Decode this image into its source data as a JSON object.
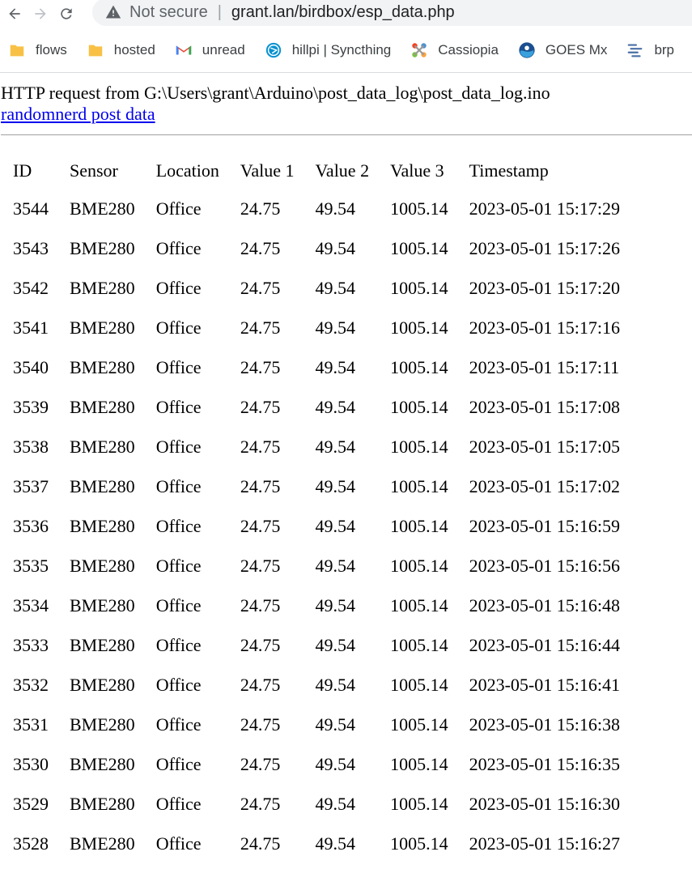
{
  "browser": {
    "security_label": "Not secure",
    "url": "grant.lan/birdbox/esp_data.php",
    "bookmarks": [
      {
        "label": "flows",
        "icon": "folder-icon"
      },
      {
        "label": "hosted",
        "icon": "folder-icon"
      },
      {
        "label": "unread",
        "icon": "gmail-icon"
      },
      {
        "label": "hillpi | Syncthing",
        "icon": "syncthing-icon"
      },
      {
        "label": "Cassiopia",
        "icon": "joomla-icon"
      },
      {
        "label": "GOES Mx",
        "icon": "noaa-icon"
      },
      {
        "label": "brp",
        "icon": "brp-icon"
      }
    ]
  },
  "page": {
    "request_line": "HTTP request from G:\\Users\\grant\\Arduino\\post_data_log\\post_data_log.ino",
    "link_text": "randomnerd post data"
  },
  "table": {
    "headers": [
      "ID",
      "Sensor",
      "Location",
      "Value 1",
      "Value 2",
      "Value 3",
      "Timestamp"
    ],
    "rows": [
      [
        "3544",
        "BME280",
        "Office",
        "24.75",
        "49.54",
        "1005.14",
        "2023-05-01 15:17:29"
      ],
      [
        "3543",
        "BME280",
        "Office",
        "24.75",
        "49.54",
        "1005.14",
        "2023-05-01 15:17:26"
      ],
      [
        "3542",
        "BME280",
        "Office",
        "24.75",
        "49.54",
        "1005.14",
        "2023-05-01 15:17:20"
      ],
      [
        "3541",
        "BME280",
        "Office",
        "24.75",
        "49.54",
        "1005.14",
        "2023-05-01 15:17:16"
      ],
      [
        "3540",
        "BME280",
        "Office",
        "24.75",
        "49.54",
        "1005.14",
        "2023-05-01 15:17:11"
      ],
      [
        "3539",
        "BME280",
        "Office",
        "24.75",
        "49.54",
        "1005.14",
        "2023-05-01 15:17:08"
      ],
      [
        "3538",
        "BME280",
        "Office",
        "24.75",
        "49.54",
        "1005.14",
        "2023-05-01 15:17:05"
      ],
      [
        "3537",
        "BME280",
        "Office",
        "24.75",
        "49.54",
        "1005.14",
        "2023-05-01 15:17:02"
      ],
      [
        "3536",
        "BME280",
        "Office",
        "24.75",
        "49.54",
        "1005.14",
        "2023-05-01 15:16:59"
      ],
      [
        "3535",
        "BME280",
        "Office",
        "24.75",
        "49.54",
        "1005.14",
        "2023-05-01 15:16:56"
      ],
      [
        "3534",
        "BME280",
        "Office",
        "24.75",
        "49.54",
        "1005.14",
        "2023-05-01 15:16:48"
      ],
      [
        "3533",
        "BME280",
        "Office",
        "24.75",
        "49.54",
        "1005.14",
        "2023-05-01 15:16:44"
      ],
      [
        "3532",
        "BME280",
        "Office",
        "24.75",
        "49.54",
        "1005.14",
        "2023-05-01 15:16:41"
      ],
      [
        "3531",
        "BME280",
        "Office",
        "24.75",
        "49.54",
        "1005.14",
        "2023-05-01 15:16:38"
      ],
      [
        "3530",
        "BME280",
        "Office",
        "24.75",
        "49.54",
        "1005.14",
        "2023-05-01 15:16:35"
      ],
      [
        "3529",
        "BME280",
        "Office",
        "24.75",
        "49.54",
        "1005.14",
        "2023-05-01 15:16:30"
      ],
      [
        "3528",
        "BME280",
        "Office",
        "24.75",
        "49.54",
        "1005.14",
        "2023-05-01 15:16:27"
      ]
    ]
  }
}
